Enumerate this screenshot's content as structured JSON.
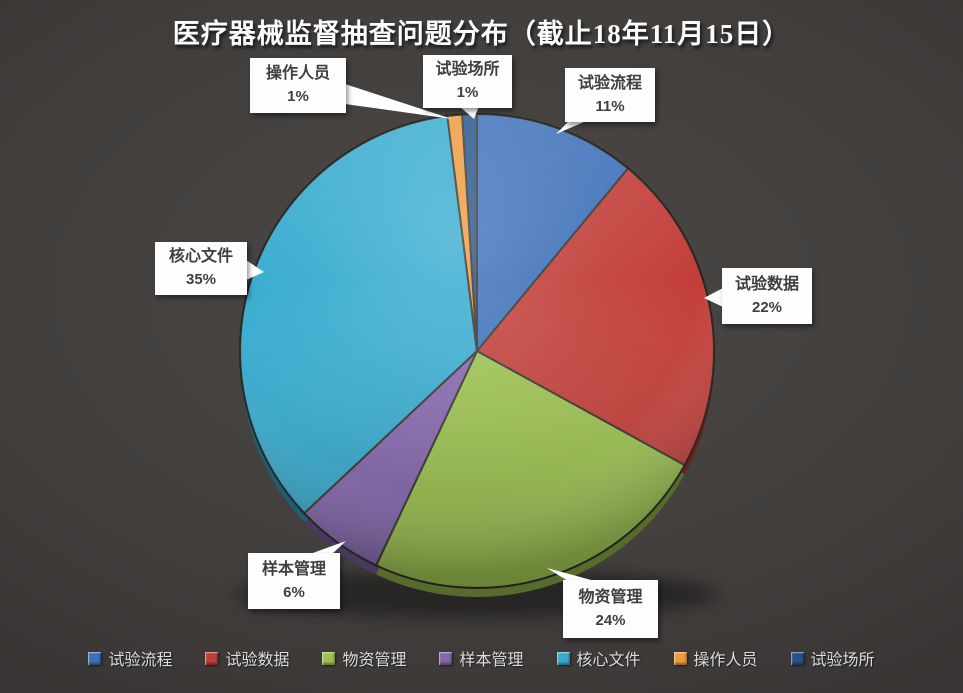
{
  "title": "医疗器械监督抽查问题分布（截止18年11月15日）",
  "chart_data": {
    "type": "pie",
    "title": "医疗器械监督抽查问题分布（截止18年11月15日）",
    "categories": [
      "试验流程",
      "试验数据",
      "物资管理",
      "样本管理",
      "核心文件",
      "操作人员",
      "试验场所"
    ],
    "values": [
      11,
      22,
      24,
      6,
      35,
      1,
      1
    ],
    "labels": [
      "11%",
      "22%",
      "24%",
      "6%",
      "35%",
      "1%",
      "1%"
    ],
    "colors": [
      "#3D70B9",
      "#C23E39",
      "#9CC250",
      "#8568AE",
      "#36ABCF",
      "#EF9A3C",
      "#27538A"
    ],
    "start_angle": 0,
    "direction": "clockwise",
    "style": "3d-pie",
    "legend_position": "bottom",
    "background_color": "#3f3c3a",
    "callout_text_color": "#3f3f3f",
    "title_color": "#fcfcfc"
  }
}
